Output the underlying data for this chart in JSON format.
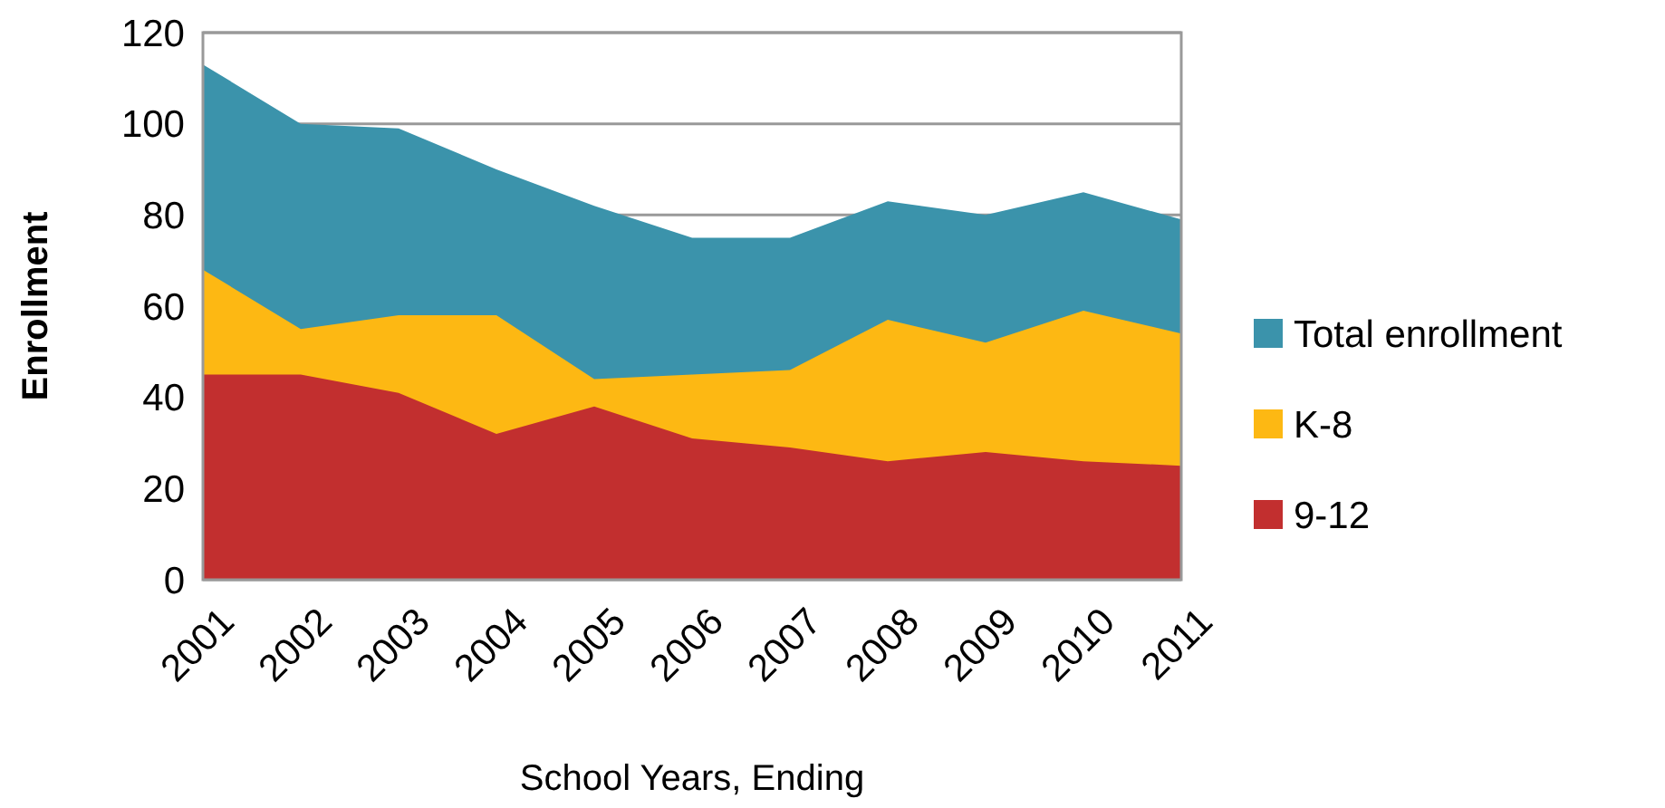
{
  "chart_data": {
    "type": "area",
    "xlabel": "School Years, Ending",
    "ylabel": "Enrollment",
    "categories": [
      "2001",
      "2002",
      "2003",
      "2004",
      "2005",
      "2006",
      "2007",
      "2008",
      "2009",
      "2010",
      "2011"
    ],
    "series": [
      {
        "name": "Total enrollment",
        "color": "#3b93ab",
        "values": [
          113,
          100,
          99,
          90,
          82,
          75,
          75,
          83,
          80,
          85,
          79
        ]
      },
      {
        "name": "K-8",
        "color": "#fdb813",
        "values": [
          68,
          55,
          58,
          58,
          44,
          45,
          46,
          57,
          52,
          59,
          54
        ]
      },
      {
        "name": "9-12",
        "color": "#c22f2f",
        "values": [
          45,
          45,
          41,
          32,
          38,
          31,
          29,
          26,
          28,
          26,
          25
        ]
      }
    ],
    "ylim": [
      0,
      120
    ],
    "yticks": [
      0,
      20,
      40,
      60,
      80,
      100,
      120
    ],
    "grid": "y",
    "legend": "right"
  }
}
